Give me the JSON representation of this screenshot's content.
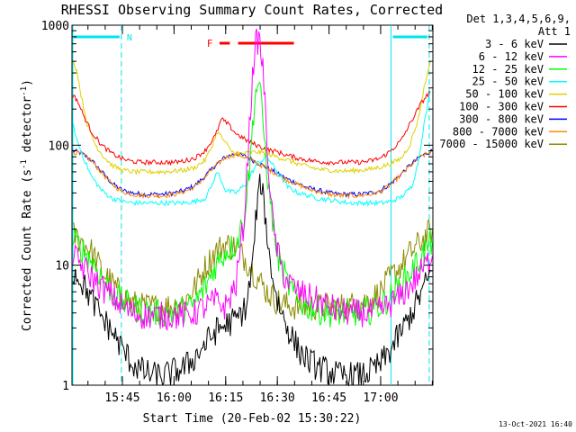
{
  "chart_data": {
    "type": "line",
    "title": "RHESSI Observing Summary Count Rates, Corrected",
    "xlabel": "Start Time (20-Feb-02 15:30:22)",
    "ylabel": "Corrected Count Rate (s⁻¹ detector⁻¹)",
    "ylabel_parts": {
      "main": "Corrected Count Rate (s",
      "exp1": "-1",
      "mid": " detector",
      "exp2": "-1",
      "end": ")"
    },
    "y_scale": "log",
    "ylim": [
      1,
      1000
    ],
    "xlim": [
      15.5061,
      17.2528
    ],
    "x_ticks": [
      {
        "value": 15.75,
        "label": "15:45"
      },
      {
        "value": 16.0,
        "label": "16:00"
      },
      {
        "value": 16.25,
        "label": "16:15"
      },
      {
        "value": 16.5,
        "label": "16:30"
      },
      {
        "value": 16.75,
        "label": "16:45"
      },
      {
        "value": 17.0,
        "label": "17:00"
      }
    ],
    "y_ticks": [
      {
        "value": 1,
        "label": "1"
      },
      {
        "value": 10,
        "label": "10"
      },
      {
        "value": 100,
        "label": "100"
      },
      {
        "value": 1000,
        "label": "1000"
      }
    ],
    "legend": {
      "position": "right",
      "header": [
        "Det 1,3,4,5,6,9,",
        "Att 1"
      ]
    },
    "series": [
      {
        "name": "3 - 6 keV",
        "color": "#000000",
        "x": [
          15.51,
          15.54,
          15.58,
          15.62,
          15.66,
          15.7,
          15.75,
          15.8,
          15.85,
          15.9,
          15.95,
          16.0,
          16.05,
          16.1,
          16.15,
          16.2,
          16.25,
          16.3,
          16.35,
          16.38,
          16.4,
          16.42,
          16.44,
          16.46,
          16.5,
          16.55,
          16.6,
          16.65,
          16.7,
          16.75,
          16.8,
          16.85,
          16.9,
          16.95,
          17.0,
          17.05,
          17.1,
          17.15,
          17.2,
          17.25
        ],
        "y": [
          9,
          8,
          6,
          4.5,
          3.5,
          2.8,
          2.0,
          1.5,
          1.3,
          1.2,
          1.2,
          1.3,
          1.4,
          1.7,
          2.2,
          2.8,
          3.2,
          3.5,
          4.5,
          10,
          30,
          50,
          28,
          12,
          5,
          3,
          2,
          1.6,
          1.4,
          1.3,
          1.2,
          1.2,
          1.2,
          1.3,
          1.5,
          2.0,
          2.8,
          4,
          6,
          9
        ]
      },
      {
        "name": "6 - 12 keV",
        "color": "#ff00ff",
        "x": [
          15.51,
          15.55,
          15.6,
          15.65,
          15.7,
          15.75,
          15.8,
          15.85,
          15.9,
          15.95,
          16.0,
          16.05,
          16.1,
          16.15,
          16.2,
          16.25,
          16.3,
          16.34,
          16.37,
          16.39,
          16.41,
          16.43,
          16.45,
          16.48,
          16.52,
          16.56,
          16.6,
          16.65,
          16.7,
          16.75,
          16.8,
          16.85,
          16.9,
          16.95,
          17.0,
          17.05,
          17.1,
          17.15,
          17.2,
          17.25
        ],
        "y": [
          12,
          10,
          8,
          6.5,
          5.5,
          4.5,
          4.0,
          3.8,
          3.8,
          3.8,
          3.8,
          3.8,
          4.0,
          4.5,
          5.0,
          4.5,
          7,
          25,
          200,
          650,
          780,
          450,
          100,
          20,
          9,
          7,
          6,
          5.5,
          5,
          4.5,
          4.2,
          4.0,
          4.0,
          4.0,
          4.2,
          4.8,
          5.5,
          7,
          9,
          12
        ]
      },
      {
        "name": "12 - 25 keV",
        "color": "#00ff00",
        "x": [
          15.51,
          15.55,
          15.6,
          15.65,
          15.7,
          15.75,
          15.8,
          15.85,
          15.9,
          15.95,
          16.0,
          16.05,
          16.1,
          16.15,
          16.2,
          16.25,
          16.3,
          16.34,
          16.37,
          16.39,
          16.41,
          16.43,
          16.46,
          16.5,
          16.55,
          16.6,
          16.65,
          16.7,
          16.75,
          16.8,
          16.85,
          16.9,
          16.95,
          17.0,
          17.05,
          17.1,
          17.15,
          17.2,
          17.25
        ],
        "y": [
          16,
          14,
          11,
          8,
          6,
          5,
          4.5,
          4.2,
          4.0,
          4.0,
          4.0,
          4.2,
          4.8,
          6.5,
          10,
          13,
          15,
          25,
          80,
          250,
          350,
          160,
          40,
          12,
          7,
          5,
          4.5,
          4.2,
          4.0,
          4.0,
          4.0,
          4.0,
          4.2,
          4.6,
          5.5,
          7,
          9,
          12,
          16
        ]
      },
      {
        "name": "25 - 50 keV",
        "color": "#00ffff",
        "x": [
          15.51,
          15.53,
          15.56,
          15.6,
          15.65,
          15.7,
          15.75,
          15.8,
          15.85,
          15.9,
          15.95,
          16.0,
          16.05,
          16.1,
          16.15,
          16.18,
          16.21,
          16.25,
          16.3,
          16.35,
          16.4,
          16.45,
          16.5,
          16.55,
          16.6,
          16.65,
          16.7,
          16.75,
          16.8,
          16.85,
          16.9,
          16.95,
          17.0,
          17.05,
          17.1,
          17.15,
          17.18,
          17.21,
          17.24
        ],
        "y": [
          150,
          110,
          80,
          55,
          42,
          36,
          34,
          33,
          33,
          33,
          33,
          33,
          33,
          34,
          36,
          45,
          60,
          42,
          40,
          48,
          70,
          80,
          60,
          45,
          40,
          38,
          36,
          35,
          34,
          33,
          33,
          33,
          33,
          34,
          37,
          45,
          70,
          150,
          280
        ]
      },
      {
        "name": "50 - 100 keV",
        "color": "#e0d000",
        "x": [
          15.51,
          15.53,
          15.55,
          15.58,
          15.62,
          15.66,
          15.7,
          15.75,
          15.8,
          15.85,
          15.9,
          15.95,
          16.0,
          16.05,
          16.1,
          16.15,
          16.18,
          16.21,
          16.24,
          16.28,
          16.32,
          16.36,
          16.4,
          16.45,
          16.5,
          16.55,
          16.6,
          16.65,
          16.7,
          16.75,
          16.8,
          16.85,
          16.9,
          16.95,
          17.0,
          17.05,
          17.1,
          17.14,
          17.18,
          17.21,
          17.24
        ],
        "y": [
          500,
          420,
          260,
          150,
          100,
          80,
          68,
          62,
          60,
          60,
          60,
          60,
          61,
          62,
          65,
          75,
          95,
          130,
          110,
          88,
          85,
          86,
          88,
          85,
          80,
          75,
          70,
          66,
          63,
          62,
          61,
          61,
          62,
          63,
          66,
          70,
          78,
          100,
          160,
          300,
          500
        ]
      },
      {
        "name": "100 - 300 keV",
        "color": "#ff0000",
        "x": [
          15.51,
          15.53,
          15.56,
          15.6,
          15.65,
          15.7,
          15.75,
          15.8,
          15.85,
          15.9,
          15.95,
          16.0,
          16.05,
          16.1,
          16.15,
          16.2,
          16.23,
          16.26,
          16.3,
          16.35,
          16.4,
          16.45,
          16.5,
          16.55,
          16.6,
          16.65,
          16.7,
          16.75,
          16.8,
          16.85,
          16.9,
          16.95,
          17.0,
          17.05,
          17.1,
          17.15,
          17.2,
          17.24
        ],
        "y": [
          260,
          240,
          180,
          130,
          100,
          85,
          77,
          73,
          72,
          72,
          72,
          72,
          74,
          78,
          90,
          120,
          165,
          150,
          125,
          110,
          100,
          92,
          88,
          82,
          78,
          75,
          73,
          72,
          72,
          72,
          72,
          74,
          78,
          90,
          110,
          160,
          230,
          280
        ]
      },
      {
        "name": "300 - 800 keV",
        "color": "#0000ff",
        "x": [
          15.51,
          15.55,
          15.6,
          15.65,
          15.7,
          15.75,
          15.8,
          15.85,
          15.9,
          15.95,
          16.0,
          16.05,
          16.1,
          16.15,
          16.2,
          16.25,
          16.3,
          16.35,
          16.4,
          16.45,
          16.5,
          16.55,
          16.6,
          16.65,
          16.7,
          16.75,
          16.8,
          16.85,
          16.9,
          16.95,
          17.0,
          17.05,
          17.1,
          17.15,
          17.2,
          17.25
        ],
        "y": [
          90,
          86,
          75,
          60,
          48,
          42,
          40,
          39,
          39,
          39,
          40,
          42,
          46,
          55,
          68,
          80,
          85,
          80,
          72,
          65,
          58,
          52,
          48,
          44,
          42,
          40,
          39,
          39,
          39,
          40,
          42,
          48,
          58,
          70,
          82,
          90
        ]
      },
      {
        "name": "800 - 7000 keV",
        "color": "#ff8c00",
        "x": [
          15.51,
          15.55,
          15.6,
          15.65,
          15.7,
          15.75,
          15.8,
          15.85,
          15.9,
          15.95,
          16.0,
          16.05,
          16.1,
          16.15,
          16.2,
          16.25,
          16.3,
          16.35,
          16.4,
          16.45,
          16.5,
          16.55,
          16.6,
          16.65,
          16.7,
          16.75,
          16.8,
          16.85,
          16.9,
          16.95,
          17.0,
          17.05,
          17.1,
          17.15,
          17.2,
          17.25
        ],
        "y": [
          88,
          85,
          74,
          59,
          47,
          41,
          39,
          38,
          38,
          38,
          39,
          41,
          45,
          54,
          67,
          79,
          84,
          79,
          71,
          64,
          57,
          51,
          47,
          43,
          41,
          39,
          38,
          38,
          38,
          39,
          41,
          47,
          57,
          69,
          81,
          89
        ]
      },
      {
        "name": "7000 - 15000 keV",
        "color": "#8b8b00",
        "x": [
          15.51,
          15.55,
          15.6,
          15.65,
          15.7,
          15.75,
          15.8,
          15.85,
          15.9,
          15.95,
          16.0,
          16.05,
          16.1,
          16.15,
          16.2,
          16.25,
          16.3,
          16.35,
          16.4,
          16.45,
          16.5,
          16.55,
          16.6,
          16.65,
          16.7,
          16.75,
          16.8,
          16.85,
          16.9,
          16.95,
          17.0,
          17.05,
          17.1,
          17.15,
          17.2,
          17.25
        ],
        "y": [
          18,
          16,
          13,
          9,
          7,
          5.5,
          4.8,
          4.5,
          4.5,
          4.5,
          4.6,
          5,
          6.5,
          9.5,
          13,
          15,
          14,
          11,
          8,
          6,
          5,
          4.6,
          4.5,
          4.5,
          4.5,
          4.5,
          4.5,
          4.6,
          4.8,
          5.2,
          6,
          8,
          10,
          13,
          16,
          20
        ]
      }
    ],
    "annotations": {
      "night_label": "N",
      "flare_label": "F",
      "night_intervals": [
        [
          15.506,
          15.745
        ],
        [
          17.05,
          17.235
        ]
      ],
      "night_dashed_x": [
        15.745,
        17.235
      ],
      "night_solid_x": [
        15.51,
        17.05
      ],
      "flare_intervals": [
        [
          16.22,
          16.27
        ],
        [
          16.31,
          16.58
        ]
      ]
    }
  },
  "footer": {
    "timestamp": "13-Oct-2021 16:40"
  }
}
